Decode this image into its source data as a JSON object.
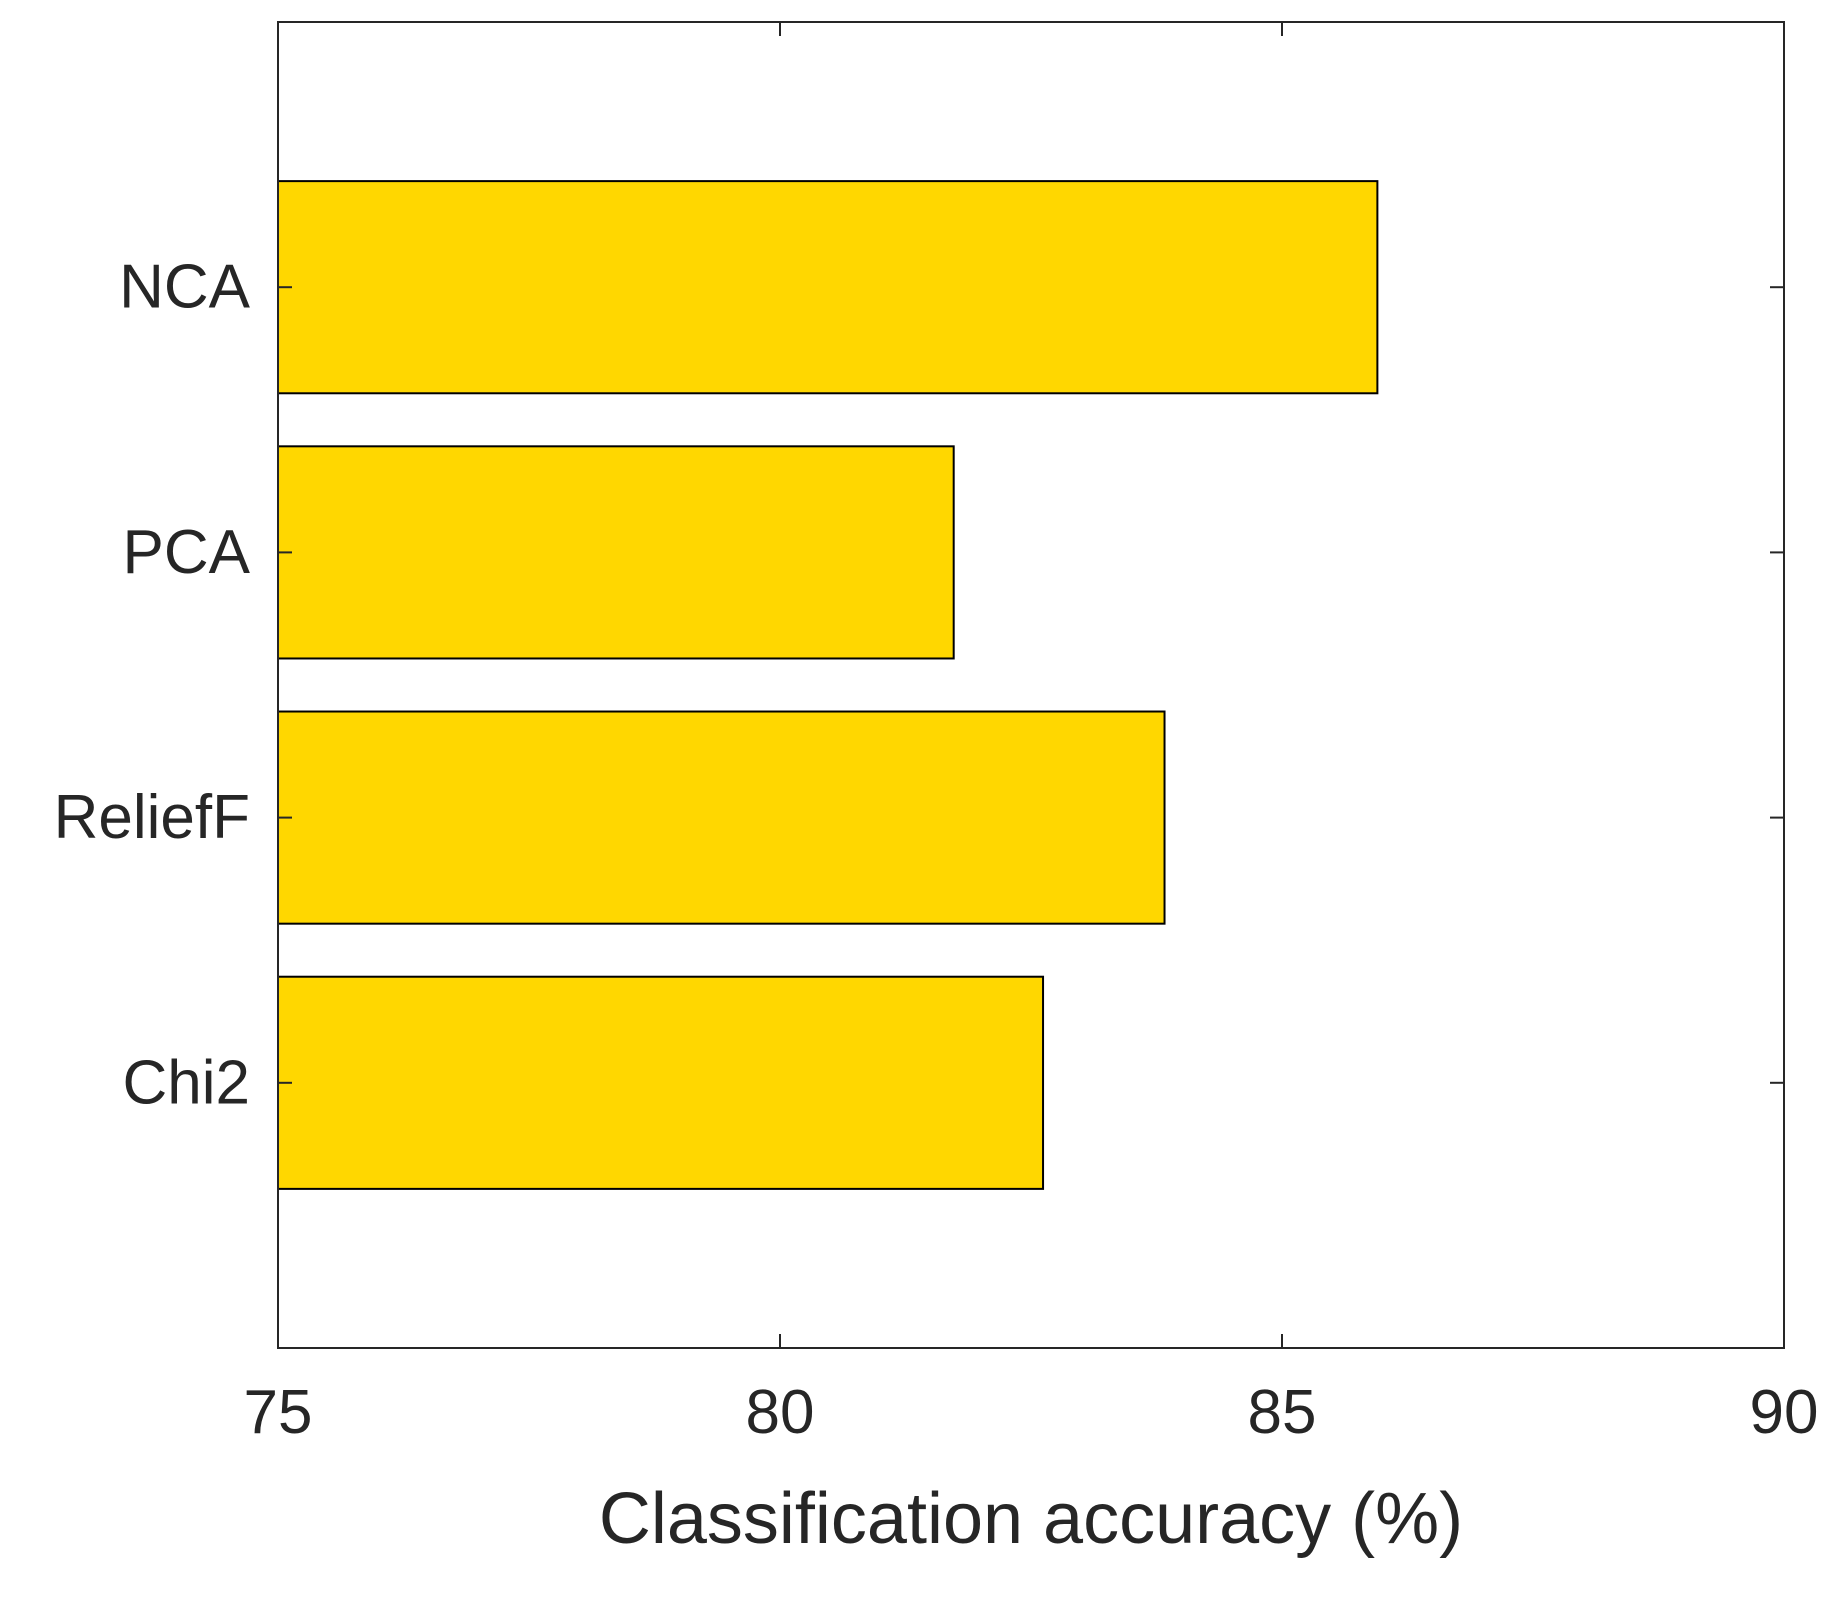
{
  "chart_data": {
    "type": "bar",
    "orientation": "horizontal",
    "title": "",
    "xlabel": "Classification accuracy (%)",
    "ylabel": "",
    "categories": [
      "NCA",
      "PCA",
      "ReliefF",
      "Chi2"
    ],
    "values": [
      85.95,
      81.73,
      83.83,
      82.62
    ],
    "xlim": [
      75,
      90
    ],
    "xticks": [
      "75",
      "80",
      "85",
      "90"
    ],
    "grid": false,
    "legend": "none",
    "bar_color": "#FFD700",
    "bar_edge_color": "#000000"
  }
}
